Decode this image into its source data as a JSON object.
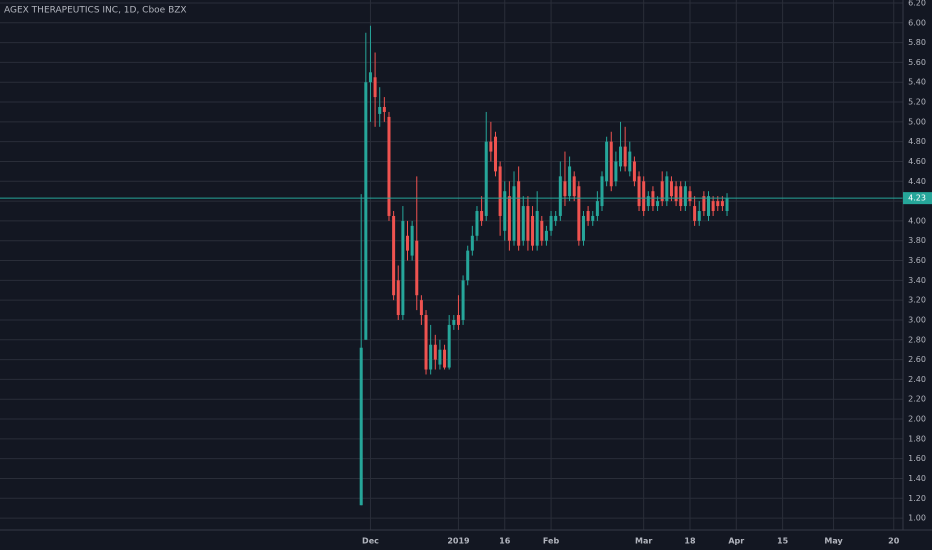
{
  "chart_data": {
    "type": "candlestick",
    "title": "AGEX THERAPEUTICS INC, 1D, Cboe BZX",
    "open": [
      1.13,
      2.8,
      5.4,
      5.45,
      5.08,
      5.15,
      5.05,
      4.05,
      3.4,
      3.05,
      3.85,
      3.65,
      3.8,
      3.2,
      3.05,
      2.5,
      2.75,
      2.55,
      2.7,
      2.52,
      2.95,
      3.05,
      3.0,
      3.4,
      3.7,
      3.85,
      4.1,
      4.05,
      4.8,
      4.85,
      4.55,
      3.9,
      4.25,
      3.8,
      4.4,
      3.8,
      4.15,
      4.05,
      3.75,
      4.0,
      3.8,
      3.9,
      4.0,
      4.05,
      4.4,
      4.25,
      4.45,
      4.35,
      3.8,
      4.1,
      4.0,
      4.05,
      4.15,
      4.4,
      4.8,
      4.4,
      4.55,
      4.75,
      4.5,
      4.6,
      4.45,
      4.4,
      4.15,
      4.3,
      4.15,
      4.4,
      4.2,
      4.4,
      4.35,
      4.35,
      4.15,
      4.3,
      4.15,
      4.0,
      4.25,
      4.05,
      4.2,
      4.2,
      4.2,
      4.1
    ],
    "high": [
      4.27,
      5.9,
      5.97,
      5.7,
      5.35,
      5.25,
      5.1,
      4.1,
      3.55,
      4.15,
      4.0,
      4.0,
      4.45,
      3.25,
      3.1,
      2.95,
      2.85,
      2.8,
      2.75,
      3.05,
      3.05,
      3.25,
      3.45,
      3.75,
      3.95,
      4.15,
      4.25,
      5.1,
      5.0,
      4.9,
      4.6,
      4.4,
      4.4,
      4.5,
      4.55,
      4.25,
      4.25,
      4.15,
      4.3,
      4.05,
      3.95,
      4.1,
      4.1,
      4.6,
      4.7,
      4.65,
      4.5,
      4.4,
      4.1,
      4.15,
      4.1,
      4.3,
      4.5,
      4.85,
      4.9,
      4.7,
      5.0,
      4.95,
      4.8,
      4.65,
      4.5,
      4.45,
      4.3,
      4.35,
      4.25,
      4.5,
      4.5,
      4.45,
      4.4,
      4.4,
      4.4,
      4.35,
      4.25,
      4.2,
      4.3,
      4.3,
      4.25,
      4.25,
      4.25,
      4.28
    ],
    "low": [
      1.13,
      2.8,
      5.0,
      4.95,
      4.95,
      5.0,
      4.0,
      3.2,
      3.0,
      3.0,
      3.6,
      3.6,
      3.1,
      2.95,
      2.45,
      2.45,
      2.5,
      2.5,
      2.5,
      2.5,
      2.9,
      2.9,
      2.95,
      3.35,
      3.65,
      3.8,
      3.95,
      4.0,
      4.6,
      4.45,
      3.85,
      3.8,
      3.7,
      3.75,
      3.7,
      3.75,
      3.7,
      3.7,
      3.7,
      3.75,
      3.75,
      3.85,
      3.95,
      4.0,
      4.15,
      4.2,
      4.2,
      3.75,
      3.75,
      3.95,
      3.95,
      4.0,
      4.1,
      4.35,
      4.3,
      4.35,
      4.5,
      4.5,
      4.45,
      4.35,
      4.1,
      4.05,
      4.1,
      4.1,
      4.1,
      4.15,
      4.15,
      4.2,
      4.15,
      4.1,
      4.1,
      4.15,
      3.95,
      3.95,
      4.05,
      4.0,
      4.05,
      4.1,
      4.1,
      4.05
    ],
    "close": [
      2.72,
      5.4,
      5.5,
      5.25,
      5.15,
      5.1,
      4.05,
      3.25,
      3.05,
      4.0,
      3.7,
      3.95,
      3.25,
      3.05,
      2.5,
      2.75,
      2.6,
      2.7,
      2.52,
      2.95,
      3.0,
      2.95,
      3.4,
      3.7,
      3.85,
      4.1,
      4.0,
      4.8,
      4.7,
      4.5,
      4.05,
      4.3,
      3.8,
      4.35,
      3.75,
      4.15,
      3.8,
      3.75,
      4.1,
      3.8,
      3.9,
      4.05,
      4.05,
      4.45,
      4.25,
      4.55,
      4.25,
      3.8,
      4.05,
      4.0,
      4.05,
      4.2,
      4.45,
      4.8,
      4.35,
      4.6,
      4.75,
      4.55,
      4.7,
      4.4,
      4.15,
      4.1,
      4.25,
      4.15,
      4.2,
      4.2,
      4.45,
      4.25,
      4.2,
      4.15,
      4.35,
      4.2,
      4.0,
      4.1,
      4.1,
      4.25,
      4.1,
      4.15,
      4.15,
      4.23
    ],
    "up_color": "#26a69a",
    "down_color": "#ef5350",
    "last_price": 4.23,
    "xlim": [
      -78,
      117
    ],
    "xticks": [
      {
        "value": 2,
        "label": "Dec"
      },
      {
        "value": 21,
        "label": "2019"
      },
      {
        "value": 31,
        "label": "16"
      },
      {
        "value": 41,
        "label": "Feb"
      },
      {
        "value": 61,
        "label": "Mar"
      },
      {
        "value": 71,
        "label": "18"
      },
      {
        "value": 81,
        "label": "Apr"
      },
      {
        "value": 91,
        "label": "15"
      },
      {
        "value": 102,
        "label": "May"
      },
      {
        "value": 115,
        "label": "20"
      }
    ],
    "ylim": [
      0.88,
      6.23
    ],
    "yticks": [
      {
        "value": 1,
        "label": "1.00"
      },
      {
        "value": 1.2,
        "label": "1.20"
      },
      {
        "value": 1.4,
        "label": "1.40"
      },
      {
        "value": 1.6,
        "label": "1.60"
      },
      {
        "value": 1.8,
        "label": "1.80"
      },
      {
        "value": 2,
        "label": "2.00"
      },
      {
        "value": 2.2,
        "label": "2.20"
      },
      {
        "value": 2.4,
        "label": "2.40"
      },
      {
        "value": 2.6,
        "label": "2.60"
      },
      {
        "value": 2.8,
        "label": "2.80"
      },
      {
        "value": 3,
        "label": "3.00"
      },
      {
        "value": 3.2,
        "label": "3.20"
      },
      {
        "value": 3.4,
        "label": "3.40"
      },
      {
        "value": 3.6,
        "label": "3.60"
      },
      {
        "value": 3.8,
        "label": "3.80"
      },
      {
        "value": 4,
        "label": "4.00"
      },
      {
        "value": 4.2,
        "label": "4.20"
      },
      {
        "value": 4.4,
        "label": "4.40"
      },
      {
        "value": 4.6,
        "label": "4.60"
      },
      {
        "value": 4.8,
        "label": "4.80"
      },
      {
        "value": 5,
        "label": "5.00"
      },
      {
        "value": 5.2,
        "label": "5.20"
      },
      {
        "value": 5.4,
        "label": "5.40"
      },
      {
        "value": 5.6,
        "label": "5.60"
      },
      {
        "value": 5.8,
        "label": "5.80"
      },
      {
        "value": 6,
        "label": "6.00"
      },
      {
        "value": 6.2,
        "label": "6.20"
      }
    ],
    "grid": true
  }
}
